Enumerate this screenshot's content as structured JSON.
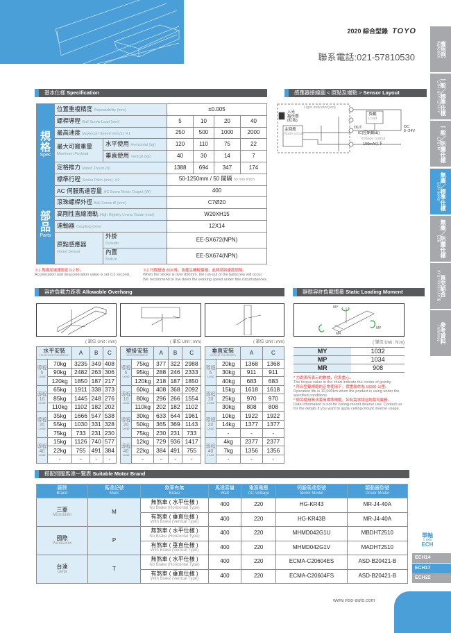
{
  "header": {
    "year_title": "2020 綜合型錄",
    "logo": "TOYO",
    "phone": "聯系電話:021-57810530"
  },
  "side_tabs": [
    {
      "zh": "應用例",
      "en": "Application"
    },
    {
      "zh": "一般／標準仕樣",
      "en": "GTH / GTY / ETH / Y"
    },
    {
      "zh": "一般／防塵仕樣",
      "en": "ETB / M"
    },
    {
      "zh": "無塵／標準仕樣",
      "en": "ECH Series",
      "active": true
    },
    {
      "zh": "無塵／防塵仕樣",
      "en": "ECB"
    },
    {
      "zh": "直交組合",
      "en": "XYG / XYTH / XYTB"
    },
    {
      "zh": "參考資料",
      "en": "Reference"
    }
  ],
  "spec": {
    "title_zh": "基本仕樣",
    "title_en": "Specification",
    "spec_group": {
      "zh": "規格",
      "en": "Spec"
    },
    "parts_group": {
      "zh": "部品",
      "en": "Parts"
    },
    "repeatability": {
      "zh": "位置重複精度",
      "en": "Repeatability (mm)",
      "value": "±0.005"
    },
    "lead": {
      "zh": "螺桿導程",
      "en": "Ball Screw Lead (mm)",
      "values": [
        "5",
        "10",
        "20",
        "40"
      ]
    },
    "speed": {
      "zh": "最高速度",
      "en": "Maximum Speed (mm/s)",
      "mark": "※1",
      "values": [
        "250",
        "500",
        "1000",
        "2000"
      ]
    },
    "payload": {
      "zh": "最大可搬重量",
      "en": "Maximum Payload",
      "horizontal": {
        "zh": "水平使用",
        "en": "Horizontal (kg)",
        "values": [
          "120",
          "110",
          "75",
          "22"
        ]
      },
      "vertical": {
        "zh": "垂直使用",
        "en": "Vertical (kg)",
        "values": [
          "40",
          "30",
          "14",
          "7"
        ]
      }
    },
    "thrust": {
      "zh": "定格推力",
      "en": "Rated Thrust (N)",
      "values": [
        "1388",
        "694",
        "347",
        "174"
      ]
    },
    "stroke": {
      "zh": "標準行程",
      "en": "Stroke Pitch (mm)",
      "mark": "※2",
      "value": "50-1250mm / 50 間隔",
      "value_en": "50 mm Pitch"
    },
    "motor": {
      "zh": "AC 伺服馬達容量",
      "en": "AC Servo Motor Output (W)",
      "value": "400"
    },
    "screw": {
      "zh": "滾珠螺桿外徑",
      "en": "Ball Screw Ø (mm)",
      "value": "C7Ø20"
    },
    "guide": {
      "zh": "高剛性直線滑軌",
      "en": "High Rigidity Linear Guide (mm)",
      "value": "W20XH15"
    },
    "coupling": {
      "zh": "連軸器",
      "en": "Coupling (mm)",
      "value": "12X14"
    },
    "sensor": {
      "zh": "原點感應器",
      "en": "Home Sensor",
      "outside": {
        "zh": "外掛",
        "en": "Outside",
        "value": "EE-SX672(NPN)"
      },
      "builtin": {
        "zh": "內置",
        "en": "Built-In",
        "value": "EE-SX674(NPN)"
      }
    },
    "note1_zh": "※1 馬達加減速設定 0.2 秒。",
    "note1_en": "Acceleration and deacceleration value is set 0.2 second.",
    "note2_zh": "※2 行程超過 850 時，會產生螺桿偏擺，此時請將速度調降。",
    "note2_en1": "When the stroke is over 850mm, the run-out of the ballscrew will occur.",
    "note2_en2": "We recommend to low down   the working speed under this circumstances."
  },
  "sensor_layout": {
    "title_zh": "感應器接線圖 < 原點及端點 >",
    "title_en": "Sensor Layout",
    "light": "Light indicator(red)",
    "lamp": "入光\n指示燈\n(紅色)",
    "main_zh": "主回燈",
    "main_en": "Main circuit",
    "load_zh": "負載",
    "load_en": "Load",
    "out": "OUT",
    "ic": "IC(控制輸出)",
    "vout": "Voltage output",
    "ma": "100mA以下",
    "dc": "DC\n5~24V"
  },
  "overhang": {
    "title_zh": "容許負載力距表",
    "title_en": "Allowable Overhang",
    "unit": "( 單位 Unit : mm)",
    "lead_zh": "導程",
    "lead_en": "Lead",
    "tables": [
      {
        "title_zh": "水平安裝",
        "title_en": "Horizontal Installation",
        "cols": [
          "A",
          "B",
          "C"
        ],
        "groups": [
          {
            "lead": "5",
            "rows": [
              [
                "70kg",
                "3235",
                "349",
                "408"
              ],
              [
                "90kg",
                "2482",
                "263",
                "306"
              ],
              [
                "120kg",
                "1850",
                "187",
                "217"
              ]
            ]
          },
          {
            "lead": "10",
            "rows": [
              [
                "65kg",
                "1911",
                "338",
                "373"
              ],
              [
                "85kg",
                "1445",
                "248",
                "276"
              ],
              [
                "110kg",
                "1102",
                "182",
                "202"
              ]
            ]
          },
          {
            "lead": "20",
            "rows": [
              [
                "35kg",
                "1666",
                "547",
                "538"
              ],
              [
                "55kg",
                "1030",
                "331",
                "328"
              ],
              [
                "75kg",
                "733",
                "231",
                "230"
              ]
            ]
          },
          {
            "lead": "40",
            "rows": [
              [
                "15kg",
                "1126",
                "740",
                "577"
              ],
              [
                "22kg",
                "755",
                "491",
                "384"
              ],
              [
                "-",
                "-",
                "-",
                "-"
              ]
            ]
          }
        ]
      },
      {
        "title_zh": "壁掛安裝",
        "title_en": "Wall Installation",
        "cols": [
          "A",
          "B",
          "C"
        ],
        "groups": [
          {
            "lead": "5",
            "rows": [
              [
                "75kg",
                "377",
                "322",
                "2988"
              ],
              [
                "95kg",
                "288",
                "246",
                "2333"
              ],
              [
                "120kg",
                "218",
                "187",
                "1850"
              ]
            ]
          },
          {
            "lead": "10",
            "rows": [
              [
                "60kg",
                "408",
                "368",
                "2092"
              ],
              [
                "80kg",
                "296",
                "266",
                "1554"
              ],
              [
                "110kg",
                "202",
                "182",
                "1102"
              ]
            ]
          },
          {
            "lead": "20",
            "rows": [
              [
                "30kg",
                "633",
                "644",
                "1961"
              ],
              [
                "50kg",
                "365",
                "369",
                "1143"
              ],
              [
                "75kg",
                "230",
                "231",
                "733"
              ]
            ]
          },
          {
            "lead": "40",
            "rows": [
              [
                "12kg",
                "729",
                "936",
                "1417"
              ],
              [
                "22kg",
                "384",
                "491",
                "755"
              ],
              [
                "-",
                "-",
                "-",
                "-"
              ]
            ]
          }
        ]
      },
      {
        "title_zh": "垂直安裝",
        "title_en": "Vertical Installation",
        "cols": [
          "A",
          "C"
        ],
        "groups": [
          {
            "lead": "5",
            "rows": [
              [
                "20kg",
                "1368",
                "1368"
              ],
              [
                "30kg",
                "911",
                "911"
              ],
              [
                "40kg",
                "683",
                "683"
              ]
            ]
          },
          {
            "lead": "10",
            "rows": [
              [
                "15kg",
                "1618",
                "1618"
              ],
              [
                "25kg",
                "970",
                "970"
              ],
              [
                "30kg",
                "808",
                "808"
              ]
            ]
          },
          {
            "lead": "20",
            "rows": [
              [
                "10kg",
                "1922",
                "1922"
              ],
              [
                "14kg",
                "1377",
                "1377"
              ],
              [
                "-",
                "-",
                "-"
              ]
            ]
          },
          {
            "lead": "40",
            "rows": [
              [
                "4kg",
                "2377",
                "2377"
              ],
              [
                "7kg",
                "1356",
                "1356"
              ],
              [
                "-",
                "-",
                "-"
              ]
            ]
          }
        ]
      }
    ]
  },
  "static_moment": {
    "title_zh": "靜態容許負載慣量",
    "title_en": "Static Loading Moment",
    "unit": "( 單位 Unit : N.m)",
    "rows": [
      [
        "MY",
        "1032"
      ],
      [
        "MP",
        "1034"
      ],
      [
        "MR",
        "908"
      ]
    ],
    "notes": [
      {
        "zh": "* 力距表所表示的數據，代表重心。",
        "en": "The torque value in the chart indicate the center of gravity."
      },
      {
        "zh": "* 符合型錄規範的正常使用下，保證壽命為 10000 公里。",
        "en": "Operation life is 10,000km when the product is using under the specified conditions."
      },
      {
        "zh": "* 倒吊使用無法套用標準規範，如有需求請洽詢我司業務。",
        "en": "Data information is not for ceiling-mount inverse use. Contact us for the details if you want to apply ceiling-mount inverse usage."
      }
    ]
  },
  "motor_brand": {
    "title_zh": "搭配伺服馬達一覽表",
    "title_en": "Suitable Motor Brand",
    "headers": [
      [
        "廠牌",
        "Brand"
      ],
      [
        "馬達記號",
        "Mark"
      ],
      [
        "煞車有無",
        "Brake"
      ],
      [
        "馬達容量",
        "Watt"
      ],
      [
        "電源電壓",
        "AC-Voltage"
      ],
      [
        "伺服馬達型號",
        "Motor Model"
      ],
      [
        "驅動器型號",
        "Driver Model"
      ]
    ],
    "brake_no": {
      "zh": "無煞車 ( 水平仕樣 )",
      "en": "No Brake (Horizontal Type)"
    },
    "brake_yes": {
      "zh": "有煞車 ( 垂直仕樣 )",
      "en": "With Brake (Vertical Type)"
    },
    "brands": [
      {
        "zh": "三菱",
        "en": "Mitsubishi",
        "mark": "M",
        "rows": [
          [
            "400",
            "220",
            "HG-KR43",
            "MR-J4-40A"
          ],
          [
            "400",
            "220",
            "HG-KR43B",
            "MR-J4-40A"
          ]
        ]
      },
      {
        "zh": "國際",
        "en": "Panasonic",
        "mark": "P",
        "rows": [
          [
            "400",
            "220",
            "MHMD042G1U",
            "MBDHT2510"
          ],
          [
            "400",
            "220",
            "MHMD042G1V",
            "MADHT2510"
          ]
        ]
      },
      {
        "zh": "台達",
        "en": "Delta",
        "mark": "T",
        "rows": [
          [
            "400",
            "220",
            "ECMA-C20604ES",
            "ASD-B20421-B"
          ],
          [
            "400",
            "220",
            "ECMA-C20604FS",
            "ASD-B20421-B"
          ]
        ]
      }
    ]
  },
  "series_nav": {
    "zh": "單軸",
    "en": "1 axis",
    "series": "ECH",
    "items": [
      {
        "label": "ECH14"
      },
      {
        "label": "ECH17",
        "active": true
      },
      {
        "label": "ECH22"
      }
    ]
  },
  "footer": {
    "url": "www.viso-auto.com"
  },
  "colors": {
    "accent": "#4a9fd8",
    "header_bar": "#58595b",
    "cell_tint": "#dcedf8",
    "tab_gray": "#a6a8ab",
    "note_red": "#e33333"
  }
}
